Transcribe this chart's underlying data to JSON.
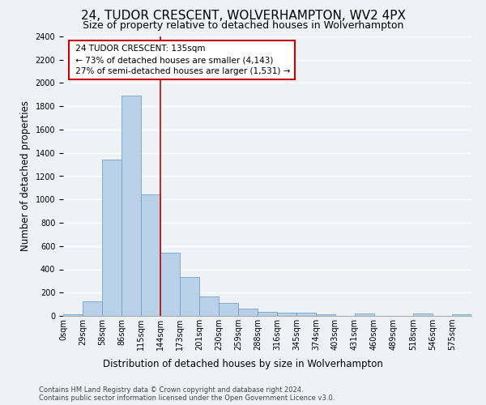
{
  "title": "24, TUDOR CRESCENT, WOLVERHAMPTON, WV2 4PX",
  "subtitle": "Size of property relative to detached houses in Wolverhampton",
  "xlabel": "Distribution of detached houses by size in Wolverhampton",
  "ylabel": "Number of detached properties",
  "bar_values": [
    15,
    125,
    1340,
    1890,
    1045,
    540,
    335,
    165,
    110,
    60,
    38,
    30,
    25,
    17,
    0,
    20,
    0,
    0,
    18,
    0,
    15
  ],
  "categories": [
    "0sqm",
    "29sqm",
    "58sqm",
    "86sqm",
    "115sqm",
    "144sqm",
    "173sqm",
    "201sqm",
    "230sqm",
    "259sqm",
    "288sqm",
    "316sqm",
    "345sqm",
    "374sqm",
    "403sqm",
    "431sqm",
    "460sqm",
    "489sqm",
    "518sqm",
    "546sqm",
    "575sqm"
  ],
  "bar_color": "#b8d0e8",
  "bar_edge_color": "#6699bb",
  "annotation_line1": "24 TUDOR CRESCENT: 135sqm",
  "annotation_line2": "← 73% of detached houses are smaller (4,143)",
  "annotation_line3": "27% of semi-detached houses are larger (1,531) →",
  "annotation_box_color": "#ffffff",
  "annotation_border_color": "#cc0000",
  "vline_color": "#cc0000",
  "ylim": [
    0,
    2400
  ],
  "yticks": [
    0,
    200,
    400,
    600,
    800,
    1000,
    1200,
    1400,
    1600,
    1800,
    2000,
    2200,
    2400
  ],
  "footer1": "Contains HM Land Registry data © Crown copyright and database right 2024.",
  "footer2": "Contains public sector information licensed under the Open Government Licence v3.0.",
  "bg_color": "#eef2f7",
  "grid_color": "#ffffff",
  "title_fontsize": 11,
  "subtitle_fontsize": 9,
  "tick_fontsize": 7,
  "ylabel_fontsize": 8.5,
  "xlabel_fontsize": 8.5,
  "footer_fontsize": 6,
  "annotation_fontsize": 7.5
}
